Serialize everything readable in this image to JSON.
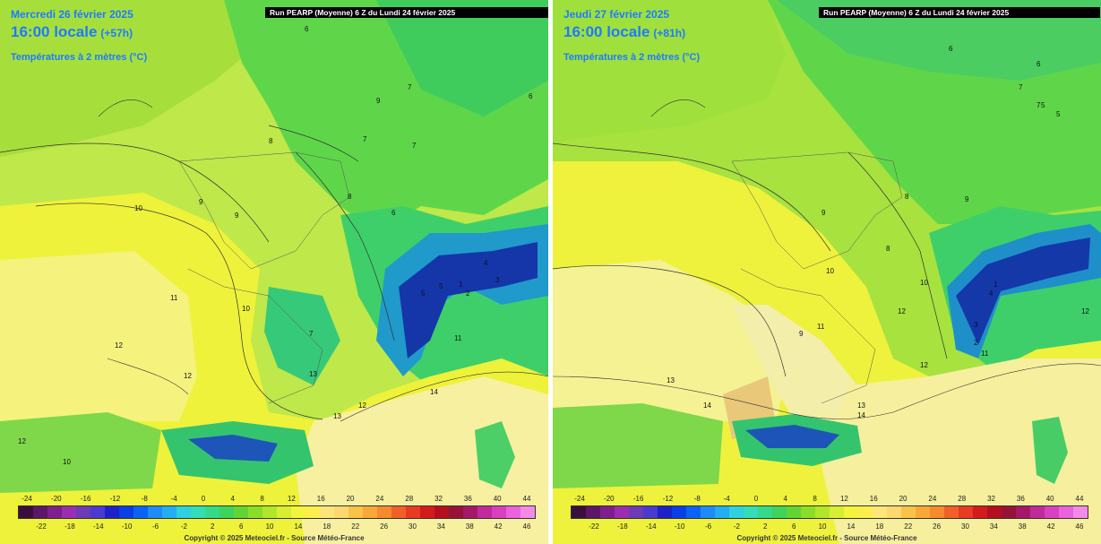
{
  "panels": [
    {
      "run_title": "Run PEARP (Moyenne) 6 Z du Lundi 24 février 2025",
      "date": "Mercredi 26 février 2025",
      "time": "16:00 locale",
      "offset": "(+57h)",
      "variable": "Températures à 2 mètres (°C)",
      "copyright": "Copyright © 2025 Meteociel.fr - Source Météo-France",
      "contour_labels": [
        "6",
        "7",
        "8",
        "8",
        "9",
        "9",
        "9",
        "10",
        "10",
        "11",
        "12",
        "12",
        "11",
        "12",
        "13",
        "13",
        "14",
        "7",
        "7",
        "7",
        "6",
        "6",
        "4",
        "5",
        "5",
        "1",
        "3",
        "2",
        "12",
        "10"
      ]
    },
    {
      "run_title": "Run PEARP (Moyenne) 6 Z du Lundi 24 février 2025",
      "date": "Jeudi 27 février 2025",
      "time": "16:00 locale",
      "offset": "(+81h)",
      "variable": "Températures à 2 mètres (°C)",
      "copyright": "Copyright © 2025 Meteociel.fr - Source Météo-France",
      "contour_labels": [
        "8",
        "8",
        "9",
        "9",
        "10",
        "10",
        "11",
        "12",
        "13",
        "13",
        "14",
        "14",
        "12",
        "7",
        "7",
        "6",
        "6",
        "5",
        "5",
        "3",
        "2",
        "4",
        "1",
        "11",
        "12",
        "9"
      ]
    }
  ],
  "legend": {
    "top_ticks": [
      "-24",
      "-20",
      "-16",
      "-12",
      "-8",
      "-4",
      "0",
      "4",
      "8",
      "12",
      "16",
      "20",
      "24",
      "28",
      "32",
      "36",
      "40",
      "44"
    ],
    "bottom_ticks": [
      "-22",
      "-18",
      "-14",
      "-10",
      "-6",
      "-2",
      "2",
      "6",
      "10",
      "14",
      "18",
      "22",
      "26",
      "30",
      "34",
      "38",
      "42",
      "46"
    ],
    "colors": [
      "#3a0f3d",
      "#5c1767",
      "#7d1f8e",
      "#9b2db0",
      "#6c3bb8",
      "#4a3ad0",
      "#1d21c8",
      "#0a3ee6",
      "#0a63f5",
      "#1e8bf7",
      "#23adf2",
      "#2fd0e0",
      "#33ddb8",
      "#36d98a",
      "#3fd35c",
      "#62d534",
      "#8ade27",
      "#b2e62b",
      "#d7ef32",
      "#f2f53b",
      "#fbee4d",
      "#fde57a",
      "#fdd870",
      "#fbc248",
      "#f8a838",
      "#f58a2e",
      "#f06028",
      "#e83a24",
      "#d41a1a",
      "#b40f1f",
      "#961338",
      "#a4186a",
      "#c02a9a",
      "#d940c0",
      "#ea62dc",
      "#f48ae8"
    ]
  }
}
